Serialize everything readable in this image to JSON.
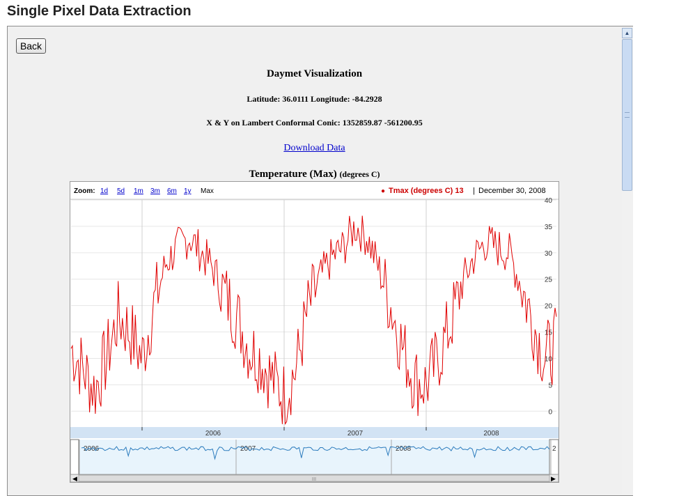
{
  "page": {
    "title": "Single Pixel Data Extraction"
  },
  "back_label": "Back",
  "viz": {
    "title": "Daymet Visualization",
    "latlon": "Latitude: 36.0111 Longitude: -84.2928",
    "xy": "X & Y on Lambert Conformal Conic: 1352859.87 -561200.95",
    "download": "Download Data",
    "chart_title": "Temperature (Max)",
    "chart_unit": "(degrees C)"
  },
  "zoom": {
    "label": "Zoom:",
    "options": [
      "1d",
      "5d",
      "1m",
      "3m",
      "6m",
      "1y",
      "Max"
    ],
    "selected": "Max"
  },
  "legend": {
    "marker": "●",
    "text": "Tmax (degrees C) 13",
    "separator": "|",
    "date": "December 30, 2008"
  },
  "colors": {
    "series": "#e00000",
    "legend": "#cc0000",
    "nav": "#2b7bbd",
    "navfill": "#e8f4fc",
    "band": "#d2e3f4",
    "link": "#0000cc"
  },
  "chart_data": {
    "type": "line",
    "title": "Temperature (Max)",
    "ylabel": "degrees C",
    "ylim": [
      -3,
      40
    ],
    "yticks": [
      0,
      5,
      10,
      15,
      20,
      25,
      30,
      35,
      40
    ],
    "year_labels": [
      "2006",
      "2007",
      "2008"
    ],
    "nav_year_labels": [
      "2006",
      "2007",
      "2008",
      "2"
    ],
    "series": [
      {
        "name": "Tmax (degrees C)",
        "x": [
          "2005-07",
          "2005-08",
          "2005-09",
          "2005-10",
          "2005-11",
          "2005-12",
          "2006-01",
          "2006-02",
          "2006-03",
          "2006-04",
          "2006-05",
          "2006-06",
          "2006-07",
          "2006-08",
          "2006-09",
          "2006-10",
          "2006-11",
          "2006-12",
          "2007-01",
          "2007-02",
          "2007-03",
          "2007-04",
          "2007-05",
          "2007-06",
          "2007-07",
          "2007-08",
          "2007-09",
          "2007-10",
          "2007-11",
          "2007-12",
          "2008-01",
          "2008-02",
          "2008-03",
          "2008-04",
          "2008-05",
          "2008-06",
          "2008-07",
          "2008-08",
          "2008-09",
          "2008-10",
          "2008-11",
          "2008-12"
        ],
        "y": [
          12,
          8,
          4,
          10,
          18,
          15,
          10,
          20,
          28,
          31,
          33,
          30,
          27,
          22,
          18,
          12,
          10,
          6,
          3,
          8,
          19,
          25,
          29,
          31,
          35,
          33,
          27,
          20,
          12,
          6,
          5,
          10,
          16,
          24,
          29,
          32,
          31,
          30,
          24,
          17,
          10,
          13
        ]
      }
    ]
  }
}
